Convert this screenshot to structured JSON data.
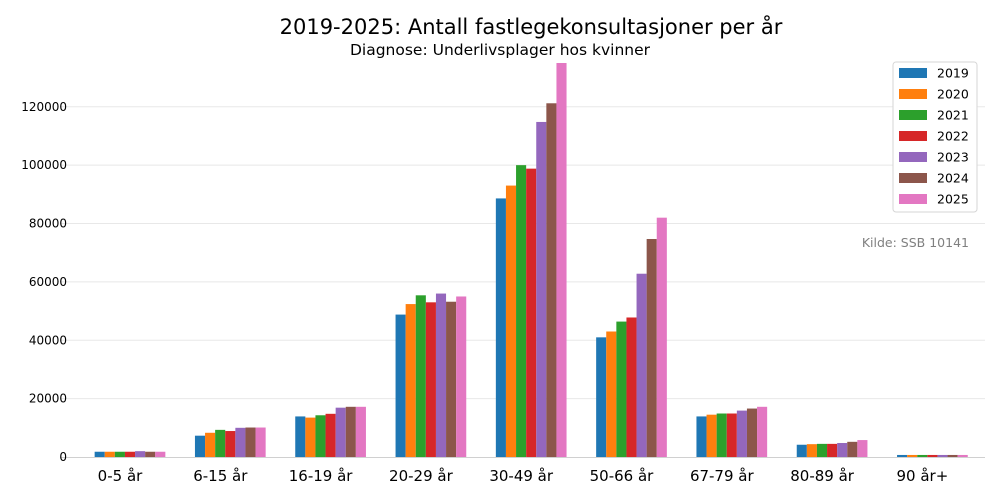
{
  "chart_data": {
    "type": "bar",
    "title": "2019-2025: Antall fastlegekonsultasjoner per år",
    "subtitle": "Diagnose: Underlivsplager hos kvinner",
    "xlabel": "",
    "ylabel": "",
    "source": "Kilde: SSB 10141",
    "ylim": [
      0,
      135000
    ],
    "yticks": [
      0,
      20000,
      40000,
      60000,
      80000,
      100000,
      120000
    ],
    "grid": true,
    "legend_position": "top-right",
    "categories": [
      "0-5 år",
      "6-15 år",
      "16-19 år",
      "20-29 år",
      "30-49 år",
      "50-66 år",
      "67-79 år",
      "80-89 år",
      "90 år+"
    ],
    "series": [
      {
        "name": "2019",
        "color": "#1f77b4",
        "values": [
          1800,
          7300,
          13900,
          48800,
          88600,
          41000,
          13900,
          4200,
          700
        ]
      },
      {
        "name": "2020",
        "color": "#ff7f0e",
        "values": [
          1800,
          8300,
          13500,
          52400,
          93000,
          43000,
          14500,
          4400,
          700
        ]
      },
      {
        "name": "2021",
        "color": "#2ca02c",
        "values": [
          1800,
          9300,
          14300,
          55400,
          100000,
          46400,
          14900,
          4500,
          700
        ]
      },
      {
        "name": "2022",
        "color": "#d62728",
        "values": [
          1800,
          8900,
          14800,
          53000,
          98800,
          47800,
          14900,
          4500,
          700
        ]
      },
      {
        "name": "2023",
        "color": "#9467bd",
        "values": [
          2000,
          10000,
          16900,
          56000,
          114800,
          62800,
          15900,
          4800,
          700
        ]
      },
      {
        "name": "2024",
        "color": "#8c564b",
        "values": [
          1800,
          10100,
          17200,
          53200,
          121200,
          74700,
          16600,
          5200,
          700
        ]
      },
      {
        "name": "2025",
        "color": "#e377c2",
        "values": [
          1800,
          10100,
          17200,
          55000,
          135000,
          82000,
          17200,
          5800,
          700
        ]
      }
    ]
  }
}
